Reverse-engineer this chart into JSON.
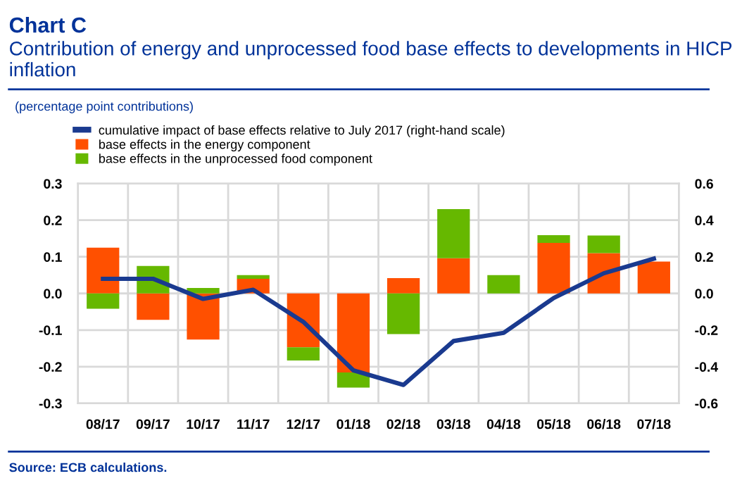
{
  "chart_data": {
    "type": "bar",
    "stacked": true,
    "title": "Chart C",
    "subtitle": "Contribution of energy and unprocessed food base effects to developments in HICP inflation",
    "annotations": [
      "(percentage point contributions)",
      "Source: ECB calculations."
    ],
    "categories": [
      "08/17",
      "09/17",
      "10/17",
      "11/17",
      "12/17",
      "01/18",
      "02/18",
      "03/18",
      "04/18",
      "05/18",
      "06/18",
      "07/18"
    ],
    "series": [
      {
        "name": "cumulative impact of base effects relative to July 2017 (right-hand scale)",
        "type": "line",
        "axis": "y2",
        "color": "#1a3a8f",
        "values": [
          0.08,
          0.08,
          -0.03,
          0.02,
          -0.155,
          -0.42,
          -0.5,
          -0.26,
          -0.215,
          -0.025,
          0.11,
          0.19
        ]
      },
      {
        "name": "base effects in the energy component",
        "color": "#ff5000",
        "values": [
          0.125,
          -0.072,
          -0.126,
          0.04,
          -0.147,
          -0.216,
          0.042,
          0.096,
          0.0,
          0.138,
          0.11,
          0.087
        ]
      },
      {
        "name": "base effects in the unprocessed food component",
        "color": "#66b800",
        "values": [
          -0.042,
          0.075,
          0.015,
          0.01,
          -0.036,
          -0.041,
          -0.111,
          0.134,
          0.05,
          0.021,
          0.048,
          0.0
        ]
      }
    ],
    "ylim": [
      -0.3,
      0.3
    ],
    "yticks": [
      -0.3,
      -0.2,
      -0.1,
      {
        "value": 0,
        "label": "0.0"
      },
      0.1,
      0.2,
      0.3
    ],
    "y2lim": [
      -0.6,
      0.6
    ],
    "y2ticks": [
      -0.6,
      -0.4,
      -0.2,
      {
        "value": 0,
        "label": "0.0"
      },
      0.2,
      0.4,
      0.6
    ],
    "grid": true,
    "legend": "top left"
  }
}
